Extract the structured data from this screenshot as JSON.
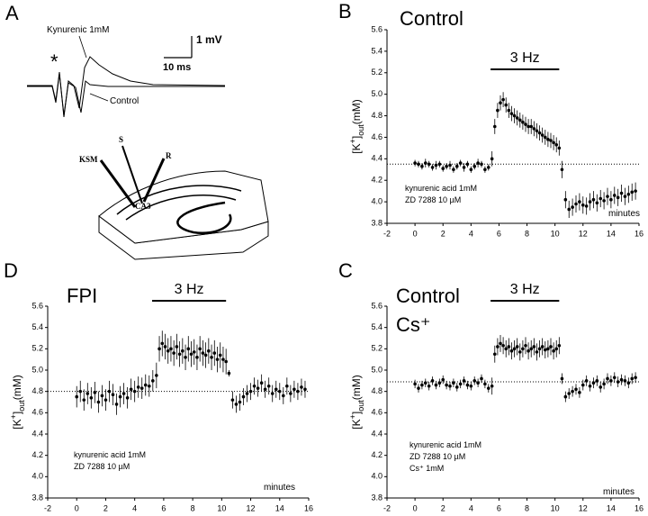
{
  "panel_a": {
    "letter": "A",
    "drug": "Kynurenic 1mM",
    "volt": "1 mV",
    "time": "10 ms",
    "control": "Control",
    "star": "*",
    "ksm": "KSM",
    "s": "S",
    "r": "R",
    "ca3": "CA3"
  },
  "chart_data": [
    {
      "type": "scatter",
      "letter": "B",
      "title": "Control",
      "subtitle": null,
      "xlabel": "minutes",
      "ylabel": [
        "[K",
        "+",
        "]",
        "out",
        "(mM)"
      ],
      "notes": [
        "kynurenic acid 1mM",
        "ZD 7288 10 µM"
      ],
      "stimulus": {
        "label": "3 Hz",
        "start": 5.4,
        "end": 10.3
      },
      "hline": 4.35,
      "xlim": [
        -2,
        16
      ],
      "ylim": [
        3.8,
        5.6
      ],
      "xticks": [
        -2,
        0,
        2,
        4,
        6,
        8,
        10,
        12,
        14,
        16
      ],
      "yticks": [
        3.8,
        {
          "value": 4,
          "label": "4.0"
        },
        4.2,
        4.4,
        4.6,
        4.8,
        {
          "value": 5,
          "label": "5.0"
        },
        5.2,
        5.4,
        5.6
      ],
      "x": [
        0,
        0.25,
        0.5,
        0.75,
        1,
        1.25,
        1.5,
        1.75,
        2,
        2.25,
        2.5,
        2.75,
        3,
        3.25,
        3.5,
        3.75,
        4,
        4.25,
        4.5,
        4.75,
        5,
        5.25,
        5.5,
        5.7,
        5.9,
        6.1,
        6.3,
        6.5,
        6.7,
        6.9,
        7.1,
        7.3,
        7.5,
        7.7,
        7.9,
        8.1,
        8.3,
        8.5,
        8.7,
        8.9,
        9.1,
        9.3,
        9.5,
        9.7,
        9.9,
        10.1,
        10.3,
        10.5,
        10.75,
        11,
        11.25,
        11.5,
        11.75,
        12,
        12.25,
        12.5,
        12.75,
        13,
        13.25,
        13.5,
        13.75,
        14,
        14.25,
        14.5,
        14.75,
        15,
        15.25,
        15.5,
        15.75
      ],
      "values": [
        4.36,
        4.35,
        4.33,
        4.36,
        4.35,
        4.32,
        4.34,
        4.35,
        4.31,
        4.33,
        4.34,
        4.3,
        4.33,
        4.36,
        4.32,
        4.35,
        4.3,
        4.33,
        4.36,
        4.35,
        4.3,
        4.32,
        4.4,
        4.7,
        4.85,
        4.92,
        4.95,
        4.9,
        4.85,
        4.82,
        4.8,
        4.78,
        4.76,
        4.74,
        4.72,
        4.7,
        4.7,
        4.68,
        4.66,
        4.64,
        4.62,
        4.6,
        4.58,
        4.57,
        4.55,
        4.53,
        4.5,
        4.3,
        4.02,
        3.93,
        3.95,
        3.98,
        4.0,
        3.97,
        3.96,
        4.0,
        4.02,
        3.99,
        4.03,
        4.01,
        4.05,
        4.02,
        4.06,
        4.04,
        4.08,
        4.05,
        4.07,
        4.09,
        4.1
      ],
      "errors": [
        0.03,
        0.03,
        0.03,
        0.04,
        0.03,
        0.03,
        0.04,
        0.03,
        0.03,
        0.03,
        0.04,
        0.03,
        0.03,
        0.03,
        0.04,
        0.03,
        0.03,
        0.03,
        0.04,
        0.03,
        0.03,
        0.03,
        0.07,
        0.07,
        0.07,
        0.07,
        0.07,
        0.07,
        0.07,
        0.07,
        0.07,
        0.07,
        0.07,
        0.07,
        0.07,
        0.07,
        0.07,
        0.07,
        0.07,
        0.07,
        0.07,
        0.07,
        0.07,
        0.07,
        0.07,
        0.07,
        0.07,
        0.08,
        0.08,
        0.08,
        0.08,
        0.08,
        0.08,
        0.08,
        0.08,
        0.08,
        0.08,
        0.08,
        0.08,
        0.08,
        0.08,
        0.08,
        0.08,
        0.08,
        0.08,
        0.08,
        0.08,
        0.08,
        0.08
      ]
    },
    {
      "type": "scatter",
      "letter": "D",
      "title": "FPI",
      "subtitle": null,
      "xlabel": "minutes",
      "ylabel": [
        "[K",
        "+",
        "]",
        "out",
        "(mM)"
      ],
      "notes": [
        "kynurenic acid 1mM",
        "ZD 7288 10 µM"
      ],
      "stimulus": {
        "label": "3 Hz",
        "start": 5.2,
        "end": 10.3
      },
      "hline": 4.8,
      "xlim": [
        -2,
        16
      ],
      "ylim": [
        3.8,
        5.6
      ],
      "xticks": [
        -2,
        0,
        2,
        4,
        6,
        8,
        10,
        12,
        14,
        16
      ],
      "yticks": [
        3.8,
        {
          "value": 4,
          "label": "4.0"
        },
        4.2,
        4.4,
        4.6,
        4.8,
        {
          "value": 5,
          "label": "5.0"
        },
        5.2,
        5.4,
        5.6
      ],
      "x": [
        0,
        0.25,
        0.5,
        0.75,
        1,
        1.25,
        1.5,
        1.75,
        2,
        2.25,
        2.5,
        2.75,
        3,
        3.25,
        3.5,
        3.75,
        4,
        4.25,
        4.5,
        4.75,
        5,
        5.25,
        5.5,
        5.7,
        5.9,
        6.1,
        6.3,
        6.5,
        6.7,
        6.9,
        7.1,
        7.3,
        7.5,
        7.7,
        7.9,
        8.1,
        8.3,
        8.5,
        8.7,
        8.9,
        9.1,
        9.3,
        9.5,
        9.7,
        9.9,
        10.1,
        10.3,
        10.5,
        10.75,
        11,
        11.25,
        11.5,
        11.75,
        12,
        12.25,
        12.5,
        12.75,
        13,
        13.25,
        13.5,
        13.75,
        14,
        14.25,
        14.5,
        14.75,
        15,
        15.25,
        15.5,
        15.75
      ],
      "values": [
        4.75,
        4.8,
        4.72,
        4.78,
        4.74,
        4.79,
        4.7,
        4.76,
        4.72,
        4.8,
        4.77,
        4.68,
        4.75,
        4.78,
        4.74,
        4.82,
        4.8,
        4.84,
        4.83,
        4.86,
        4.85,
        4.9,
        4.95,
        5.2,
        5.25,
        5.22,
        5.18,
        5.2,
        5.16,
        5.22,
        5.15,
        5.18,
        5.12,
        5.2,
        5.15,
        5.17,
        5.12,
        5.2,
        5.16,
        5.14,
        5.18,
        5.12,
        5.16,
        5.1,
        5.14,
        5.1,
        5.08,
        4.97,
        4.72,
        4.68,
        4.7,
        4.75,
        4.78,
        4.8,
        4.85,
        4.83,
        4.88,
        4.82,
        4.85,
        4.78,
        4.82,
        4.8,
        4.76,
        4.85,
        4.78,
        4.82,
        4.8,
        4.84,
        4.82
      ],
      "errors": [
        0.1,
        0.1,
        0.1,
        0.1,
        0.1,
        0.1,
        0.1,
        0.1,
        0.1,
        0.1,
        0.1,
        0.1,
        0.1,
        0.1,
        0.1,
        0.1,
        0.1,
        0.1,
        0.1,
        0.1,
        0.1,
        0.1,
        0.12,
        0.12,
        0.12,
        0.12,
        0.12,
        0.12,
        0.12,
        0.12,
        0.12,
        0.12,
        0.12,
        0.12,
        0.12,
        0.12,
        0.12,
        0.12,
        0.12,
        0.12,
        0.12,
        0.12,
        0.12,
        0.12,
        0.12,
        0.12,
        0.12,
        0.03,
        0.08,
        0.08,
        0.08,
        0.08,
        0.08,
        0.08,
        0.08,
        0.08,
        0.08,
        0.08,
        0.08,
        0.08,
        0.08,
        0.08,
        0.08,
        0.08,
        0.08,
        0.08,
        0.08,
        0.08,
        0.08
      ]
    },
    {
      "type": "scatter",
      "letter": "C",
      "title": "Control",
      "subtitle": "Cs⁺",
      "xlabel": "minutes",
      "ylabel": [
        "[K",
        "+",
        "]",
        "out",
        "(mM)"
      ],
      "notes": [
        "kynurenic acid 1mM",
        "ZD 7288 10 µM",
        "Cs⁺ 1mM"
      ],
      "stimulus": {
        "label": "3 Hz",
        "start": 5.4,
        "end": 10.3
      },
      "hline": 4.89,
      "xlim": [
        -2,
        16
      ],
      "ylim": [
        3.8,
        5.6
      ],
      "xticks": [
        -2,
        0,
        2,
        4,
        6,
        8,
        10,
        12,
        14,
        16
      ],
      "yticks": [
        3.8,
        {
          "value": 4,
          "label": "4.0"
        },
        4.2,
        4.4,
        4.6,
        4.8,
        {
          "value": 5,
          "label": "5.0"
        },
        5.2,
        5.4,
        5.6
      ],
      "x": [
        0,
        0.25,
        0.5,
        0.75,
        1,
        1.25,
        1.5,
        1.75,
        2,
        2.25,
        2.5,
        2.75,
        3,
        3.25,
        3.5,
        3.75,
        4,
        4.25,
        4.5,
        4.75,
        5,
        5.25,
        5.5,
        5.7,
        5.9,
        6.1,
        6.3,
        6.5,
        6.7,
        6.9,
        7.1,
        7.3,
        7.5,
        7.7,
        7.9,
        8.1,
        8.3,
        8.5,
        8.7,
        8.9,
        9.1,
        9.3,
        9.5,
        9.7,
        9.9,
        10.1,
        10.3,
        10.5,
        10.75,
        11,
        11.25,
        11.5,
        11.75,
        12,
        12.25,
        12.5,
        12.75,
        13,
        13.25,
        13.5,
        13.75,
        14,
        14.25,
        14.5,
        14.75,
        15,
        15.25,
        15.5,
        15.75
      ],
      "values": [
        4.87,
        4.83,
        4.86,
        4.88,
        4.85,
        4.9,
        4.86,
        4.88,
        4.91,
        4.86,
        4.85,
        4.88,
        4.84,
        4.87,
        4.9,
        4.86,
        4.85,
        4.9,
        4.88,
        4.92,
        4.87,
        4.83,
        4.85,
        5.15,
        5.22,
        5.25,
        5.23,
        5.2,
        5.22,
        5.18,
        5.2,
        5.22,
        5.17,
        5.2,
        5.23,
        5.18,
        5.2,
        5.22,
        5.17,
        5.2,
        5.22,
        5.19,
        5.2,
        5.22,
        5.18,
        5.2,
        5.23,
        4.92,
        4.75,
        4.78,
        4.8,
        4.82,
        4.79,
        4.86,
        4.9,
        4.85,
        4.88,
        4.9,
        4.84,
        4.87,
        4.92,
        4.9,
        4.93,
        4.89,
        4.91,
        4.9,
        4.88,
        4.92,
        4.93
      ],
      "errors": [
        0.04,
        0.04,
        0.04,
        0.04,
        0.04,
        0.04,
        0.04,
        0.04,
        0.04,
        0.04,
        0.04,
        0.04,
        0.04,
        0.04,
        0.04,
        0.04,
        0.04,
        0.04,
        0.04,
        0.04,
        0.04,
        0.04,
        0.08,
        0.08,
        0.08,
        0.08,
        0.08,
        0.08,
        0.08,
        0.08,
        0.08,
        0.08,
        0.08,
        0.08,
        0.08,
        0.08,
        0.08,
        0.08,
        0.08,
        0.08,
        0.08,
        0.08,
        0.08,
        0.08,
        0.08,
        0.08,
        0.08,
        0.05,
        0.05,
        0.05,
        0.05,
        0.05,
        0.05,
        0.05,
        0.05,
        0.05,
        0.05,
        0.05,
        0.05,
        0.05,
        0.05,
        0.05,
        0.05,
        0.05,
        0.05,
        0.05,
        0.05,
        0.05,
        0.05
      ]
    }
  ]
}
